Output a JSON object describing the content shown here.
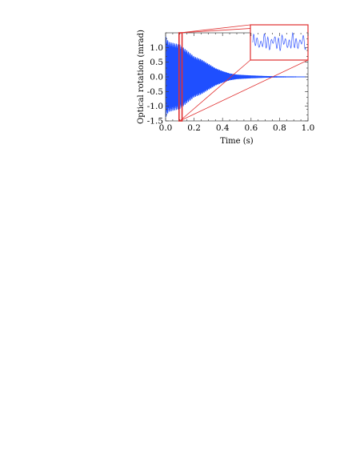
{
  "chart_data": {
    "type": "line",
    "xlabel": "Time (s)",
    "ylabel": "Optical rotation (mrad)",
    "xlim": [
      0.0,
      1.0
    ],
    "ylim": [
      -1.5,
      1.5
    ],
    "x_ticks": [
      "0.0",
      "0.2",
      "0.4",
      "0.6",
      "0.8",
      "1.0"
    ],
    "y_ticks": [
      "1.0",
      "0.5",
      "0.0",
      "-0.5",
      "-1.0",
      "-1.5"
    ],
    "x_tick_values": [
      0.0,
      0.2,
      0.4,
      0.6,
      0.8,
      1.0
    ],
    "y_tick_values": [
      1.0,
      0.5,
      0.0,
      -0.5,
      -1.0,
      -1.5
    ],
    "grid": false,
    "signal": {
      "description": "decaying oscillation",
      "envelope_t": [
        0.0,
        0.02,
        0.06,
        0.1,
        0.15,
        0.2,
        0.25,
        0.3,
        0.35,
        0.4,
        0.45,
        0.5,
        0.6,
        0.7,
        0.8,
        0.9,
        1.0
      ],
      "envelope_amp": [
        1.4,
        1.2,
        1.15,
        1.1,
        0.9,
        0.7,
        0.6,
        0.45,
        0.3,
        0.2,
        0.12,
        0.08,
        0.05,
        0.03,
        0.02,
        0.015,
        0.01
      ],
      "color": "#1f4fff"
    },
    "highlight_window": {
      "x_start": 0.1,
      "x_end": 0.11,
      "color": "#e03030"
    },
    "inset": {
      "description": "zoomed view of highlighted window",
      "color": "#e03030",
      "line_color": "#3355ff"
    }
  }
}
